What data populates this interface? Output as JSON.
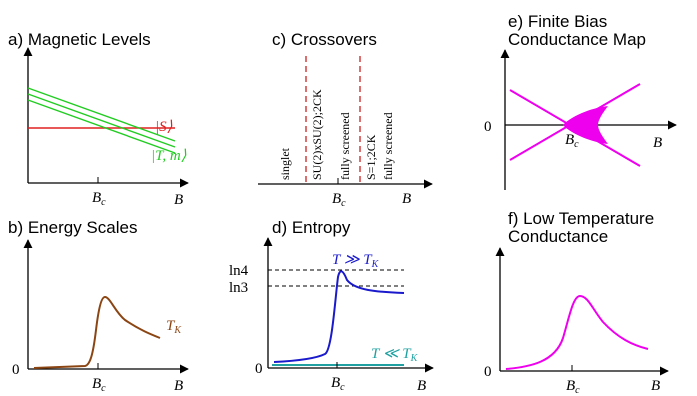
{
  "colors": {
    "singlet_level": "#e02020",
    "triplet_levels": "#22cc22",
    "kondo_scale": "#8b4513",
    "high_T_entropy": "#1a1acc",
    "low_T_entropy": "#20a0a0",
    "crossover_lines": "#cc2020",
    "conductance": "#ee00ee"
  },
  "panel_a": {
    "title": "a) Magnetic Levels",
    "xlabel": "B",
    "tick_label": "B",
    "tick_sub": "c",
    "singlet_label": "|S⟩",
    "triplet_label": "|T, m⟩"
  },
  "panel_b": {
    "title": "b) Energy Scales",
    "xlabel": "B",
    "tick_label": "B",
    "tick_sub": "c",
    "origin": "0",
    "curve_label": "T",
    "curve_sub": "K"
  },
  "panel_c": {
    "title": "c) Crossovers",
    "xlabel": "B",
    "tick_label": "B",
    "tick_sub": "c",
    "regions": [
      "singlet",
      "SU(2)xSU(2);2CK",
      "fully screened",
      "S=1;2CK",
      "fully screened"
    ]
  },
  "panel_d": {
    "title": "d) Entropy",
    "xlabel": "B",
    "tick_label": "B",
    "tick_sub": "c",
    "origin": "0",
    "ytick_1": "ln4",
    "ytick_2": "ln3",
    "high_T_label": "T ≫ T",
    "high_T_sub": "K",
    "low_T_label": "T ≪ T",
    "low_T_sub": "K"
  },
  "panel_e": {
    "title_line1": "e) Finite Bias",
    "title_line2": "Conductance Map",
    "xlabel": "B",
    "tick_label": "B",
    "tick_sub": "c",
    "origin": "0"
  },
  "panel_f": {
    "title_line1": "f) Low Temperature",
    "title_line2": "Conductance",
    "xlabel": "B",
    "tick_label": "B",
    "tick_sub": "c",
    "origin": "0"
  }
}
